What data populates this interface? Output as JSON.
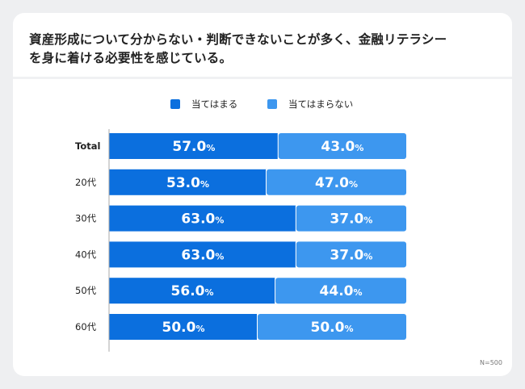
{
  "title": "資産形成について分からない・判断できないことが多く、金融リテラシー\nを身に着ける必要性を感じている。",
  "note": "N=500",
  "legend": [
    {
      "label": "当てはまる",
      "color": "#0b6fde"
    },
    {
      "label": "当てはまらない",
      "color": "#3d97ef"
    }
  ],
  "chart_data": {
    "type": "bar",
    "orientation": "horizontal",
    "stacked": true,
    "percent_stacked": true,
    "xlim": [
      0,
      100
    ],
    "categories": [
      "Total",
      "20代",
      "30代",
      "40代",
      "50代",
      "60代"
    ],
    "series": [
      {
        "name": "当てはまる",
        "color": "#0b6fde",
        "values": [
          57.0,
          53.0,
          63.0,
          63.0,
          56.0,
          50.0
        ]
      },
      {
        "name": "当てはまらない",
        "color": "#3d97ef",
        "values": [
          43.0,
          47.0,
          37.0,
          37.0,
          44.0,
          50.0
        ]
      }
    ],
    "value_suffix": "%",
    "legend_position": "top",
    "grid": false
  }
}
